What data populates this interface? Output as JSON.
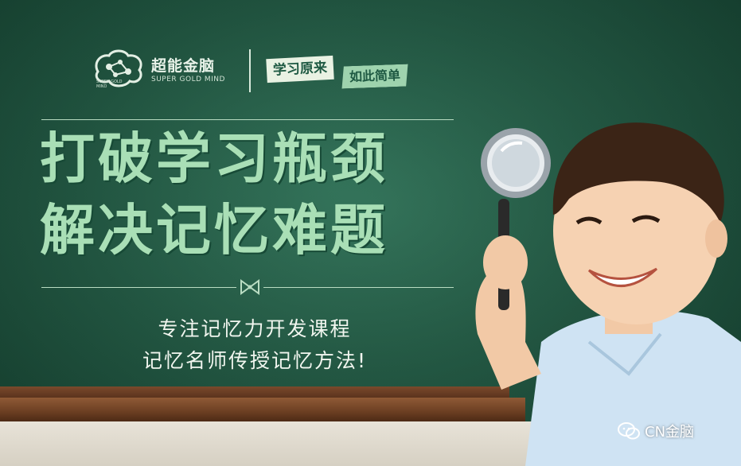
{
  "brand": {
    "name_cn": "超能金脑",
    "name_en": "SUPER GOLD MIND",
    "logo_small_text": "SUPER GOLD MIND"
  },
  "tagline": {
    "part1": "学习原来",
    "part2": "如此简单"
  },
  "headline": {
    "line1": "打破学习瓶颈",
    "line2": "解决记忆难题"
  },
  "subtitle": {
    "line1": "专注记忆力开发课程",
    "line2": "记忆名师传授记忆方法!"
  },
  "watermark": {
    "text": "CN金脑",
    "icon": "wechat-icon"
  },
  "colors": {
    "board": "#215e46",
    "headline": "#a9dfb6",
    "accent": "#9ed3ae"
  }
}
